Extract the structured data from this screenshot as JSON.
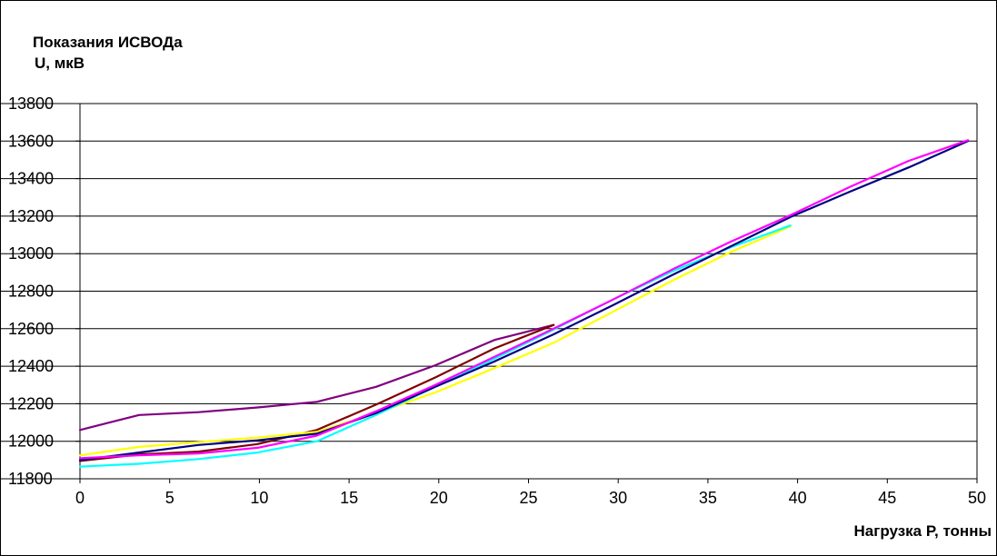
{
  "chart_data": {
    "type": "line",
    "ylabel_lines": [
      "Показания ИСВОДа",
      "U, мкВ"
    ],
    "xlabel": "Нагрузка P, тонны",
    "xlim": [
      0,
      50
    ],
    "ylim": [
      11800,
      13800
    ],
    "x_ticks": [
      0,
      5,
      10,
      15,
      20,
      25,
      30,
      35,
      40,
      45,
      50
    ],
    "y_ticks": [
      11800,
      12000,
      12200,
      12400,
      12600,
      12800,
      13000,
      13200,
      13400,
      13600,
      13800
    ],
    "grid": "horizontal",
    "series": [
      {
        "color": "#800080",
        "x": [
          0,
          3.3,
          6.6,
          9.9,
          13.2,
          16.5,
          19.8,
          23.1,
          26.4
        ],
        "y": [
          12060,
          12140,
          12155,
          12180,
          12210,
          12290,
          12405,
          12540,
          12620
        ]
      },
      {
        "color": "#800000",
        "x": [
          0,
          3.3,
          6.6,
          9.9,
          13.2,
          16.5,
          19.8,
          23.1,
          26.4
        ],
        "y": [
          11895,
          11930,
          11945,
          11985,
          12060,
          12195,
          12340,
          12495,
          12620
        ]
      },
      {
        "color": "#ffff00",
        "x": [
          0,
          3.3,
          6.6,
          9.9,
          13.2,
          16.5,
          19.8,
          23.1,
          26.4,
          29.7,
          33.0,
          36.3,
          39.6
        ],
        "y": [
          11925,
          11970,
          11995,
          12020,
          12050,
          12150,
          12260,
          12390,
          12525,
          12690,
          12855,
          13010,
          13145
        ]
      },
      {
        "color": "#00ffff",
        "x": [
          0,
          3.3,
          6.6,
          9.9,
          13.2,
          16.5,
          19.8,
          23.1,
          26.4,
          29.7,
          33.0,
          36.3,
          39.6
        ],
        "y": [
          11865,
          11880,
          11905,
          11940,
          12000,
          12140,
          12290,
          12440,
          12595,
          12755,
          12905,
          13035,
          13150
        ]
      },
      {
        "color": "#000080",
        "x": [
          0,
          3.3,
          6.6,
          9.9,
          13.2,
          16.5,
          19.8,
          23.1,
          26.4,
          29.7,
          33.0,
          36.3,
          39.6,
          42.9,
          46.2,
          49.5
        ],
        "y": [
          11900,
          11940,
          11980,
          12005,
          12040,
          12150,
          12290,
          12425,
          12570,
          12725,
          12885,
          13040,
          13195,
          13330,
          13460,
          13600
        ]
      },
      {
        "color": "#ff00ff",
        "x": [
          0,
          3.3,
          6.6,
          9.9,
          13.2,
          16.5,
          19.8,
          23.1,
          26.4,
          29.7,
          33.0,
          36.3,
          39.6,
          42.9,
          46.2,
          49.5
        ],
        "y": [
          11910,
          11925,
          11935,
          11965,
          12030,
          12160,
          12300,
          12450,
          12600,
          12755,
          12915,
          13065,
          13205,
          13355,
          13495,
          13605
        ]
      }
    ]
  }
}
